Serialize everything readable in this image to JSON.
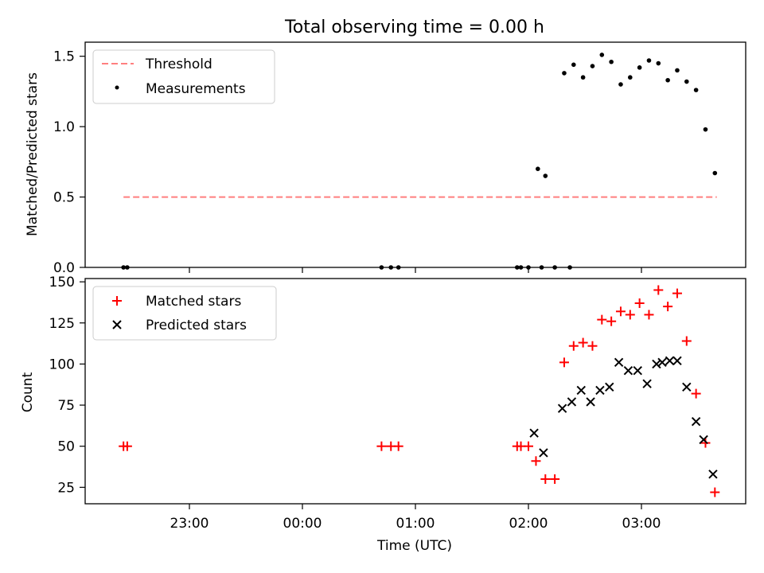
{
  "title": "Total observing time = 0.00 h",
  "chart_data": [
    {
      "type": "scatter",
      "ylabel": "Matched/Predicted stars",
      "ylim": [
        0,
        1.6
      ],
      "y_ticks": [
        0.0,
        0.5,
        1.0,
        1.5
      ],
      "y_tick_labels": [
        "0.0",
        "0.5",
        "1.0",
        "1.5"
      ],
      "legend_placement": "upper-left",
      "threshold": {
        "name": "Threshold",
        "value": 0.5,
        "x_start": "22:25",
        "x_end": "03:40",
        "color": "#ff7f7f"
      },
      "series": [
        {
          "name": "Measurements",
          "marker": "dot",
          "color": "#000000",
          "x": [
            "22:25",
            "22:27",
            "00:42",
            "00:47",
            "00:51",
            "01:54",
            "01:56",
            "02:00",
            "02:07",
            "02:14",
            "02:22",
            "02:05",
            "02:09",
            "02:19",
            "02:24",
            "02:29",
            "02:34",
            "02:39",
            "02:44",
            "02:49",
            "02:54",
            "02:59",
            "03:04",
            "03:09",
            "03:14",
            "03:19",
            "03:24",
            "03:29",
            "03:34",
            "03:39"
          ],
          "y": [
            0,
            0,
            0,
            0,
            0,
            0,
            0,
            0,
            0,
            0,
            0,
            0.7,
            0.65,
            1.38,
            1.44,
            1.35,
            1.43,
            1.51,
            1.46,
            1.3,
            1.35,
            1.42,
            1.47,
            1.45,
            1.33,
            1.4,
            1.32,
            1.26,
            0.98,
            0.67
          ]
        }
      ]
    },
    {
      "type": "scatter",
      "xlabel": "Time (UTC)",
      "ylabel": "Count",
      "ylim": [
        15,
        152
      ],
      "y_ticks": [
        25,
        50,
        75,
        100,
        125,
        150
      ],
      "y_tick_labels": [
        "25",
        "50",
        "75",
        "100",
        "125",
        "150"
      ],
      "x_ticks": [
        "23:00",
        "00:00",
        "01:00",
        "02:00",
        "03:00"
      ],
      "x_tick_labels": [
        "23:00",
        "00:00",
        "01:00",
        "02:00",
        "03:00"
      ],
      "legend_placement": "upper-left",
      "series": [
        {
          "name": "Matched stars",
          "marker": "plus",
          "color": "#ff0000",
          "x": [
            "22:25",
            "22:27",
            "00:42",
            "00:47",
            "00:51",
            "01:54",
            "01:56",
            "02:00",
            "02:04",
            "02:09",
            "02:14",
            "02:19",
            "02:24",
            "02:29",
            "02:34",
            "02:39",
            "02:44",
            "02:49",
            "02:54",
            "02:59",
            "03:04",
            "03:09",
            "03:14",
            "03:19",
            "03:24",
            "03:29",
            "03:34",
            "03:39"
          ],
          "y": [
            50,
            50,
            50,
            50,
            50,
            50,
            50,
            50,
            41,
            30,
            30,
            101,
            111,
            113,
            111,
            127,
            126,
            132,
            130,
            137,
            130,
            145,
            135,
            143,
            114,
            82,
            52,
            22
          ]
        },
        {
          "name": "Predicted stars",
          "marker": "x",
          "color": "#000000",
          "x": [
            "02:03",
            "02:08",
            "02:18",
            "02:23",
            "02:28",
            "02:33",
            "02:38",
            "02:43",
            "02:48",
            "02:53",
            "02:58",
            "03:03",
            "03:08",
            "03:11",
            "03:15",
            "03:19",
            "03:24",
            "03:29",
            "03:33",
            "03:38"
          ],
          "y": [
            58,
            46,
            73,
            77,
            84,
            77,
            84,
            86,
            101,
            96,
            96,
            88,
            100,
            101,
            102,
            102,
            86,
            65,
            54,
            33
          ]
        }
      ]
    }
  ]
}
